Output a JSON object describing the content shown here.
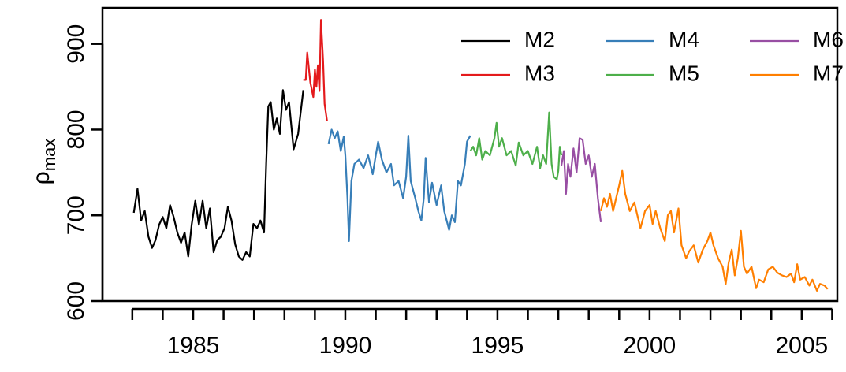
{
  "chart_data": {
    "type": "line",
    "ylabel": "ρ",
    "ylabel_sub": "max",
    "xlim": [
      1982.02,
      2006.17
    ],
    "ylim": [
      600,
      942
    ],
    "xticks": [
      1985,
      1990,
      1995,
      2000,
      2005
    ],
    "xminorticks": [
      1983,
      1984,
      1986,
      1987,
      1988,
      1989,
      1991,
      1992,
      1993,
      1994,
      1996,
      1997,
      1998,
      1999,
      2001,
      2002,
      2003,
      2004,
      2006
    ],
    "yticks": [
      600,
      700,
      800,
      900
    ],
    "legend": "top-right",
    "series": [
      {
        "name": "M2",
        "color": "#000000",
        "x": [
          1983.05,
          1983.17,
          1983.29,
          1983.41,
          1983.53,
          1983.65,
          1983.76,
          1983.88,
          1984.0,
          1984.12,
          1984.24,
          1984.36,
          1984.48,
          1984.6,
          1984.72,
          1984.84,
          1984.95,
          1985.07,
          1985.19,
          1985.31,
          1985.43,
          1985.55,
          1985.67,
          1985.79,
          1985.91,
          1986.03,
          1986.14,
          1986.26,
          1986.38,
          1986.5,
          1986.62,
          1986.74,
          1986.86,
          1986.98,
          1987.1,
          1987.21,
          1987.33,
          1987.4,
          1987.47,
          1987.55,
          1987.65,
          1987.75,
          1987.85,
          1987.95,
          1988.05,
          1988.15,
          1988.3,
          1988.45,
          1988.62
        ],
        "values": [
          703,
          731,
          694,
          705,
          675,
          662,
          671,
          689,
          698,
          685,
          712,
          698,
          680,
          668,
          680,
          652,
          689,
          717,
          689,
          717,
          685,
          708,
          657,
          671,
          675,
          685,
          710,
          694,
          666,
          652,
          648,
          657,
          652,
          690,
          685,
          694,
          680,
          760,
          827,
          832,
          800,
          813,
          795,
          846,
          823,
          832,
          777,
          795,
          846
        ]
      },
      {
        "name": "M3",
        "color": "#e41a1c",
        "x": [
          1988.62,
          1988.7,
          1988.75,
          1988.85,
          1988.95,
          1989.0,
          1989.05,
          1989.1,
          1989.15,
          1989.2,
          1989.27,
          1989.32,
          1989.4
        ],
        "values": [
          858,
          858,
          890,
          855,
          838,
          870,
          850,
          875,
          845,
          928,
          880,
          830,
          810
        ]
      },
      {
        "name": "M4",
        "color": "#377eb8",
        "x": [
          1989.45,
          1989.55,
          1989.65,
          1989.75,
          1989.85,
          1989.95,
          1990.0,
          1990.07,
          1990.12,
          1990.2,
          1990.3,
          1990.45,
          1990.6,
          1990.75,
          1990.9,
          1991.0,
          1991.08,
          1991.2,
          1991.35,
          1991.5,
          1991.6,
          1991.75,
          1991.9,
          1992.0,
          1992.07,
          1992.15,
          1992.3,
          1992.4,
          1992.5,
          1992.58,
          1992.64,
          1992.75,
          1992.85,
          1993.0,
          1993.15,
          1993.25,
          1993.41,
          1993.5,
          1993.6,
          1993.7,
          1993.8,
          1993.93,
          1994.0,
          1994.11
        ],
        "values": [
          783,
          800,
          790,
          798,
          775,
          792,
          770,
          720,
          670,
          740,
          760,
          765,
          755,
          770,
          748,
          770,
          786,
          765,
          750,
          760,
          735,
          740,
          720,
          745,
          793,
          740,
          720,
          705,
          694,
          720,
          767,
          715,
          738,
          712,
          735,
          705,
          683,
          700,
          692,
          740,
          735,
          760,
          786,
          793
        ]
      },
      {
        "name": "M5",
        "color": "#4daf4a",
        "x": [
          1994.11,
          1994.2,
          1994.3,
          1994.4,
          1994.5,
          1994.6,
          1994.75,
          1994.9,
          1994.97,
          1995.05,
          1995.15,
          1995.3,
          1995.45,
          1995.6,
          1995.7,
          1995.85,
          1996.0,
          1996.15,
          1996.3,
          1996.4,
          1996.5,
          1996.6,
          1996.7,
          1996.78,
          1996.85,
          1996.95,
          1997.0,
          1997.05,
          1997.1
        ],
        "values": [
          775,
          780,
          770,
          790,
          765,
          775,
          770,
          790,
          808,
          780,
          790,
          770,
          775,
          758,
          785,
          770,
          775,
          760,
          780,
          755,
          770,
          760,
          820,
          760,
          745,
          742,
          752,
          780,
          770
        ]
      },
      {
        "name": "M6",
        "color": "#984ea3",
        "x": [
          1997.1,
          1997.18,
          1997.25,
          1997.32,
          1997.4,
          1997.5,
          1997.6,
          1997.7,
          1997.8,
          1997.9,
          1998.0,
          1998.1,
          1998.2,
          1998.3,
          1998.4
        ],
        "values": [
          758,
          775,
          725,
          760,
          745,
          778,
          750,
          790,
          788,
          760,
          770,
          745,
          760,
          720,
          692
        ]
      },
      {
        "name": "M7",
        "color": "#ff7f00",
        "x": [
          1998.4,
          1998.5,
          1998.6,
          1998.7,
          1998.8,
          1998.9,
          1999.0,
          1999.1,
          1999.2,
          1999.35,
          1999.5,
          1999.6,
          1999.7,
          1999.85,
          2000.0,
          2000.1,
          2000.2,
          2000.35,
          2000.5,
          2000.6,
          2000.7,
          2000.8,
          2000.95,
          2001.05,
          2001.2,
          2001.3,
          2001.45,
          2001.6,
          2001.75,
          2001.9,
          2002.0,
          2002.1,
          2002.25,
          2002.4,
          2002.5,
          2002.6,
          2002.7,
          2002.8,
          2002.9,
          2003.0,
          2003.1,
          2003.2,
          2003.35,
          2003.5,
          2003.6,
          2003.75,
          2003.9,
          2004.05,
          2004.2,
          2004.35,
          2004.5,
          2004.65,
          2004.75,
          2004.85,
          2004.95,
          2005.1,
          2005.25,
          2005.35,
          2005.5,
          2005.6,
          2005.75,
          2005.85
        ],
        "values": [
          705,
          720,
          710,
          725,
          705,
          720,
          735,
          752,
          725,
          705,
          715,
          700,
          685,
          705,
          712,
          690,
          705,
          685,
          670,
          700,
          705,
          680,
          708,
          665,
          650,
          658,
          665,
          645,
          660,
          670,
          680,
          665,
          650,
          640,
          620,
          645,
          660,
          630,
          650,
          682,
          640,
          632,
          640,
          615,
          625,
          622,
          637,
          640,
          633,
          630,
          628,
          632,
          622,
          643,
          625,
          628,
          618,
          625,
          612,
          620,
          618,
          614
        ]
      }
    ]
  }
}
